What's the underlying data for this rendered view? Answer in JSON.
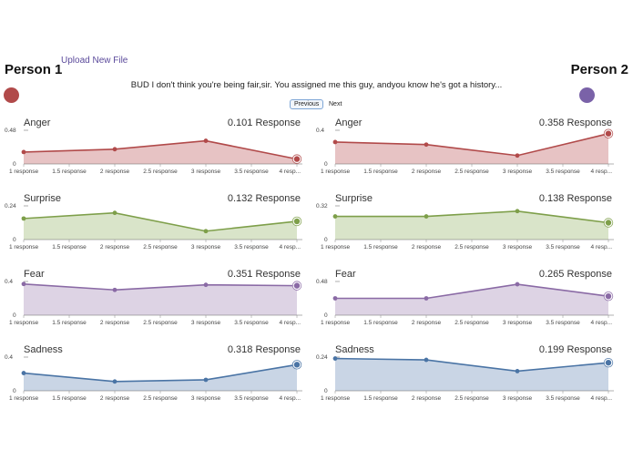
{
  "upload_label": "Upload New File",
  "person1": {
    "name": "Person 1",
    "color": "#b14a4a"
  },
  "person2": {
    "name": "Person 2",
    "color": "#7a62a8"
  },
  "dialogue": "BUD I don't think you're being fair,sir. You assigned me this guy, andyou know he's got a history...",
  "nav": {
    "previous": "Previous",
    "next": "Next"
  },
  "chart_data": [
    {
      "type": "area",
      "person": "Person 1",
      "title": "Anger",
      "response_label": "0.101 Response",
      "color": "#b14a4a",
      "fill": "#e7c3c4",
      "categories": [
        "1 response",
        "1.5 response",
        "2 response",
        "2.5 response",
        "3 response",
        "3.5 response",
        "4 resp..."
      ],
      "x": [
        1,
        2,
        3,
        4
      ],
      "values": [
        0.17,
        0.21,
        0.33,
        0.07
      ],
      "ylim": [
        0,
        0.48
      ],
      "yticks": [
        "0.48",
        "0"
      ]
    },
    {
      "type": "area",
      "person": "Person 2",
      "title": "Anger",
      "response_label": "0.358 Response",
      "color": "#b14a4a",
      "fill": "#e7c3c4",
      "categories": [
        "1 response",
        "1.5 response",
        "2 response",
        "2.5 response",
        "3 response",
        "3.5 response",
        "4 resp..."
      ],
      "x": [
        1,
        2,
        3,
        4
      ],
      "values": [
        0.26,
        0.23,
        0.1,
        0.36
      ],
      "ylim": [
        0,
        0.4
      ],
      "yticks": [
        "0.4",
        "0"
      ]
    },
    {
      "type": "area",
      "person": "Person 1",
      "title": "Surprise",
      "response_label": "0.132 Response",
      "color": "#7e9f4a",
      "fill": "#d9e4c9",
      "categories": [
        "1 response",
        "1.5 response",
        "2 response",
        "2.5 response",
        "3 response",
        "3.5 response",
        "4 resp..."
      ],
      "x": [
        1,
        2,
        3,
        4
      ],
      "values": [
        0.15,
        0.19,
        0.06,
        0.13
      ],
      "ylim": [
        0,
        0.24
      ],
      "yticks": [
        "0.24",
        "0"
      ]
    },
    {
      "type": "area",
      "person": "Person 2",
      "title": "Surprise",
      "response_label": "0.138 Response",
      "color": "#7e9f4a",
      "fill": "#d9e4c9",
      "categories": [
        "1 response",
        "1.5 response",
        "2 response",
        "2.5 response",
        "3 response",
        "3.5 response",
        "4 resp..."
      ],
      "x": [
        1,
        2,
        3,
        4
      ],
      "values": [
        0.22,
        0.22,
        0.27,
        0.16
      ],
      "ylim": [
        0,
        0.32
      ],
      "yticks": [
        "0.32",
        "0"
      ]
    },
    {
      "type": "area",
      "person": "Person 1",
      "title": "Fear",
      "response_label": "0.351 Response",
      "color": "#8a6aa5",
      "fill": "#ddd3e4",
      "categories": [
        "1 response",
        "1.5 response",
        "2 response",
        "2.5 response",
        "3 response",
        "3.5 response",
        "4 resp..."
      ],
      "x": [
        1,
        2,
        3,
        4
      ],
      "values": [
        0.37,
        0.3,
        0.36,
        0.35
      ],
      "ylim": [
        0,
        0.4
      ],
      "yticks": [
        "0.4",
        "0"
      ]
    },
    {
      "type": "area",
      "person": "Person 2",
      "title": "Fear",
      "response_label": "0.265 Response",
      "color": "#8a6aa5",
      "fill": "#ddd3e4",
      "categories": [
        "1 response",
        "1.5 response",
        "2 response",
        "2.5 response",
        "3 response",
        "3.5 response",
        "4 resp..."
      ],
      "x": [
        1,
        2,
        3,
        4
      ],
      "values": [
        0.24,
        0.24,
        0.44,
        0.27
      ],
      "ylim": [
        0,
        0.48
      ],
      "yticks": [
        "0.48",
        "0"
      ]
    },
    {
      "type": "area",
      "person": "Person 1",
      "title": "Sadness",
      "response_label": "0.318 Response",
      "color": "#4a74a5",
      "fill": "#c9d5e5",
      "categories": [
        "1 response",
        "1.5 response",
        "2 response",
        "2.5 response",
        "3 response",
        "3.5 response",
        "4 resp..."
      ],
      "x": [
        1,
        2,
        3,
        4
      ],
      "values": [
        0.21,
        0.11,
        0.13,
        0.31
      ],
      "ylim": [
        0,
        0.4
      ],
      "yticks": [
        "0.4",
        "0"
      ]
    },
    {
      "type": "area",
      "person": "Person 2",
      "title": "Sadness",
      "response_label": "0.199 Response",
      "color": "#4a74a5",
      "fill": "#c9d5e5",
      "categories": [
        "1 response",
        "1.5 response",
        "2 response",
        "2.5 response",
        "3 response",
        "3.5 response",
        "4 resp..."
      ],
      "x": [
        1,
        2,
        3,
        4
      ],
      "values": [
        0.23,
        0.22,
        0.14,
        0.2
      ],
      "ylim": [
        0,
        0.24
      ],
      "yticks": [
        "0.24",
        "0"
      ]
    }
  ]
}
